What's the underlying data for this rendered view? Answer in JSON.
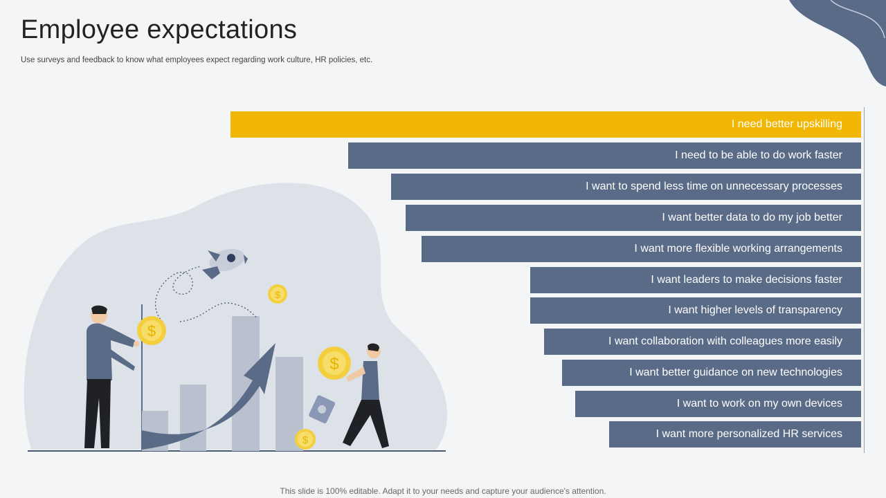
{
  "title": "Employee expectations",
  "subtitle": "Use surveys and feedback to know what employees expect regarding work culture, HR policies, etc.",
  "footer": "This slide is 100% editable. Adapt it to your needs and capture your audience's attention.",
  "colors": {
    "highlight": "#f2b705",
    "bar": "#5a6b88",
    "accent_shape": "#5a6b88"
  },
  "expectations": [
    "I need better upskilling",
    "I need to be able to do work faster",
    "I want to spend less time on unnecessary processes",
    "I want better data to do my job better",
    "I want more flexible working arrangements",
    "I want leaders to make decisions faster",
    "I want higher levels of transparency",
    "I want collaboration with colleagues more easily",
    "I want better guidance on new technologies",
    "I want to work on my own devices",
    "I want more personalized HR services"
  ]
}
